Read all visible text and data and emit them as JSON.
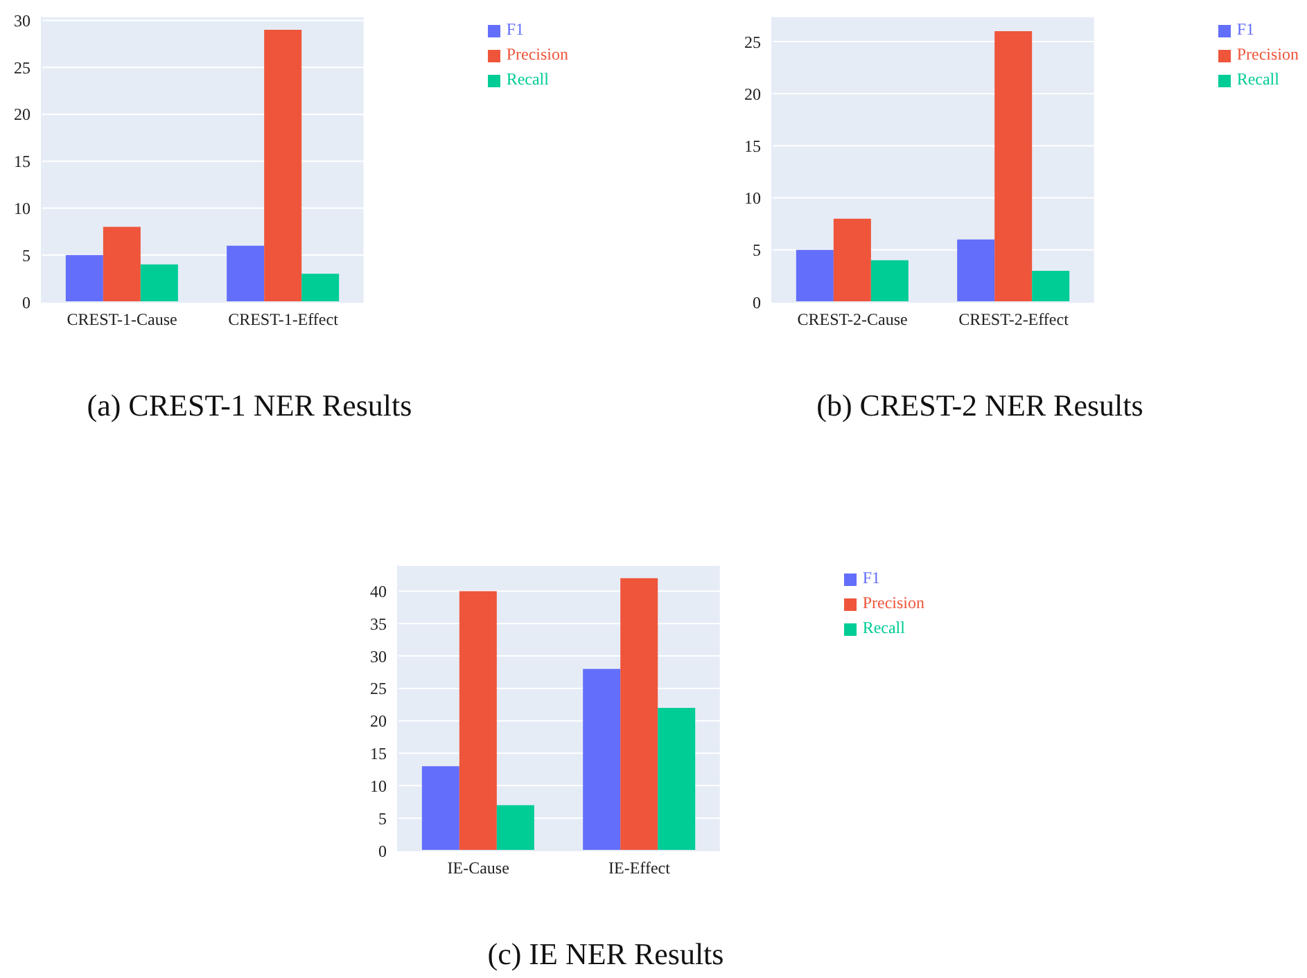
{
  "chart_data": [
    {
      "type": "bar",
      "title": "(a) CREST-1 NER Results",
      "categories": [
        "CREST-1-Cause",
        "CREST-1-Effect"
      ],
      "series": [
        {
          "name": "F1",
          "color": "#636efa",
          "values": [
            5,
            6
          ]
        },
        {
          "name": "Precision",
          "color": "#ef553b",
          "values": [
            8,
            29
          ]
        },
        {
          "name": "Recall",
          "color": "#00cc96",
          "values": [
            4,
            3
          ]
        }
      ],
      "ylim": [
        0,
        30.4
      ],
      "yticks": [
        0,
        5,
        10,
        15,
        20,
        25,
        30
      ],
      "grid": "y",
      "legend": "top right"
    },
    {
      "type": "bar",
      "title": "(b) CREST-2 NER Results",
      "categories": [
        "CREST-2-Cause",
        "CREST-2-Effect"
      ],
      "series": [
        {
          "name": "F1",
          "color": "#636efa",
          "values": [
            5,
            6
          ]
        },
        {
          "name": "Precision",
          "color": "#ef553b",
          "values": [
            8,
            26
          ]
        },
        {
          "name": "Recall",
          "color": "#00cc96",
          "values": [
            4,
            3
          ]
        }
      ],
      "ylim": [
        0,
        27.4
      ],
      "yticks": [
        0,
        5,
        10,
        15,
        20,
        25
      ],
      "grid": "y",
      "legend": "top right"
    },
    {
      "type": "bar",
      "title": "(c) IE NER Results",
      "categories": [
        "IE-Cause",
        "IE-Effect"
      ],
      "series": [
        {
          "name": "F1",
          "color": "#636efa",
          "values": [
            13,
            28
          ]
        },
        {
          "name": "Precision",
          "color": "#ef553b",
          "values": [
            40,
            42
          ]
        },
        {
          "name": "Recall",
          "color": "#00cc96",
          "values": [
            7,
            22
          ]
        }
      ],
      "ylim": [
        0,
        44
      ],
      "yticks": [
        0,
        5,
        10,
        15,
        20,
        25,
        30,
        35,
        40
      ],
      "grid": "y",
      "legend": "top right"
    }
  ]
}
